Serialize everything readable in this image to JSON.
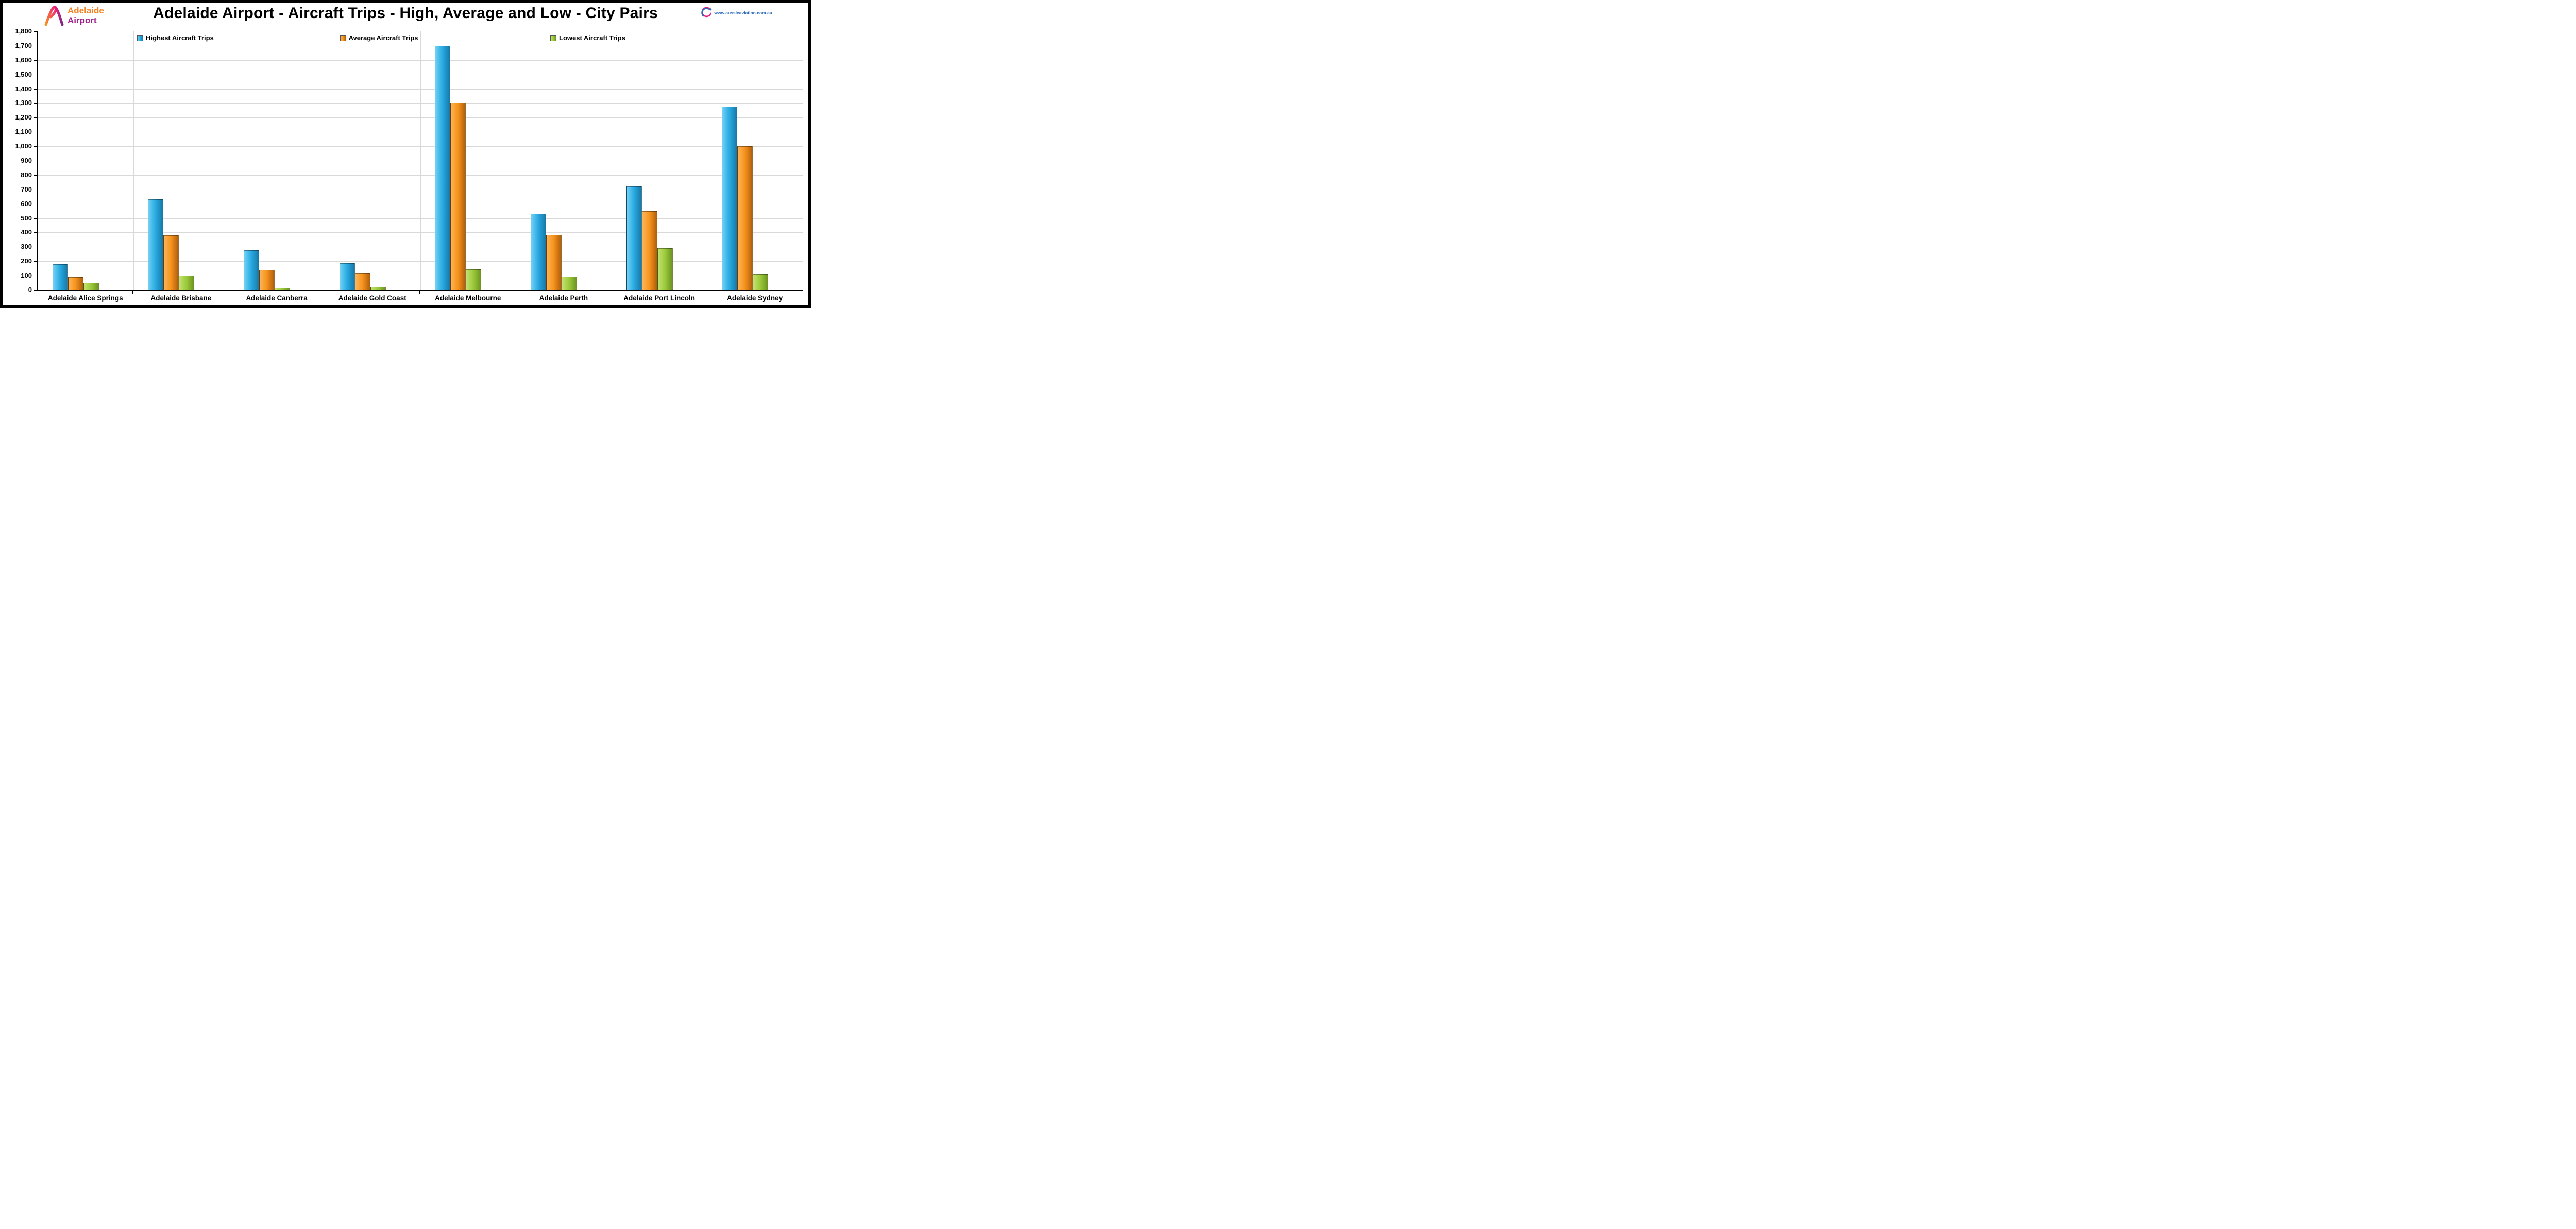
{
  "header": {
    "logo_left": {
      "line1": "Adelaide",
      "line2": "Airport"
    },
    "logo_right": {
      "url_text": "www.aussieaviation.com.au"
    }
  },
  "chart_data": {
    "type": "bar",
    "title": "Adelaide Airport - Aircraft Trips - High, Average and Low - City Pairs",
    "categories": [
      "Adelaide Alice Springs",
      "Adelaide Brisbane",
      "Adelaide Canberra",
      "Adelaide Gold Coast",
      "Adelaide Melbourne",
      "Adelaide Perth",
      "Adelaide Port Lincoln",
      "Adelaide Sydney"
    ],
    "series": [
      {
        "name": "Highest Aircraft Trips",
        "color": "#29ABE2",
        "color_light": "#72D1F5",
        "color_dark": "#1878A8",
        "values": [
          180,
          630,
          275,
          185,
          1700,
          530,
          720,
          1275
        ]
      },
      {
        "name": "Average Aircraft Trips",
        "color": "#F7941E",
        "color_light": "#FBB55A",
        "color_dark": "#B15F0C",
        "values": [
          90,
          380,
          140,
          120,
          1305,
          385,
          550,
          1000
        ]
      },
      {
        "name": "Lowest Aircraft Trips",
        "color": "#9CCB3B",
        "color_light": "#C3E173",
        "color_dark": "#6D9421",
        "values": [
          50,
          100,
          15,
          20,
          145,
          95,
          290,
          110
        ]
      }
    ],
    "ylim": [
      0,
      1800
    ],
    "ytick_step": 100,
    "grid": true,
    "legend_position": "top-inside"
  }
}
